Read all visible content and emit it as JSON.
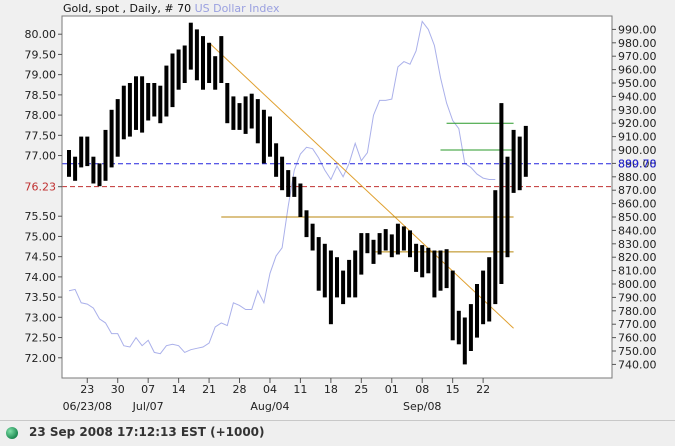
{
  "chart_data": {
    "type": "bar",
    "title_parts": {
      "symbol": "Gold, spot , Daily, # 70",
      "overlay": "US Dollar Index"
    },
    "left_axis": {
      "ylim": [
        71.5,
        80.45
      ],
      "ticks": [
        72.0,
        72.5,
        73.0,
        73.5,
        74.0,
        74.5,
        75.0,
        75.5,
        76.23,
        77.0,
        77.5,
        78.0,
        78.5,
        79.0,
        79.5,
        80.0
      ],
      "tick_labels": [
        "72.00",
        "72.50",
        "73.00",
        "73.50",
        "74.00",
        "74.50",
        "75.00",
        "75.50",
        "76.23",
        "77.00",
        "77.50",
        "78.00",
        "78.50",
        "79.00",
        "79.50",
        "80.00"
      ]
    },
    "right_axis": {
      "ylim": [
        729.86,
        1000.0
      ],
      "ticks": [
        740,
        750,
        760,
        770,
        780,
        790,
        800,
        810,
        820,
        830,
        840,
        850,
        860,
        870,
        880,
        890,
        900,
        910,
        920,
        930,
        940,
        950,
        960,
        970,
        980,
        990
      ],
      "tick_labels": [
        "740.00",
        "750.00",
        "760.00",
        "770.00",
        "780.00",
        "790.00",
        "800.00",
        "810.00",
        "820.00",
        "830.00",
        "840.00",
        "850.00",
        "860.00",
        "870.00",
        "880.00",
        "890.00",
        "900.00",
        "910.00",
        "920.00",
        "930.00",
        "940.00",
        "950.00",
        "960.00",
        "970.00",
        "980.00",
        "990.00"
      ],
      "current_value_label": "889.78"
    },
    "x_axis": {
      "day_labels": [
        {
          "i": 3,
          "t": "23"
        },
        {
          "i": 8,
          "t": "30"
        },
        {
          "i": 13,
          "t": "07"
        },
        {
          "i": 18,
          "t": "14"
        },
        {
          "i": 23,
          "t": "21"
        },
        {
          "i": 28,
          "t": "28"
        },
        {
          "i": 33,
          "t": "04"
        },
        {
          "i": 38,
          "t": "11"
        },
        {
          "i": 43,
          "t": "18"
        },
        {
          "i": 48,
          "t": "25"
        },
        {
          "i": 53,
          "t": "01"
        },
        {
          "i": 58,
          "t": "08"
        },
        {
          "i": 63,
          "t": "15"
        },
        {
          "i": 68,
          "t": "22"
        }
      ],
      "month_labels": [
        {
          "i": 3,
          "t": "06/23/08"
        },
        {
          "i": 13,
          "t": "Jul/07"
        },
        {
          "i": 33,
          "t": "Aug/04"
        },
        {
          "i": 58,
          "t": "Sep/08"
        }
      ]
    },
    "series": [
      {
        "name": "Gold, spot",
        "axis": "right",
        "style": "ohlc-bars",
        "color": "#000000",
        "values": [
          [
            880,
            900
          ],
          [
            877,
            895
          ],
          [
            887,
            910
          ],
          [
            888,
            910
          ],
          [
            875,
            895
          ],
          [
            873,
            890
          ],
          [
            877,
            915
          ],
          [
            887,
            930
          ],
          [
            895,
            938
          ],
          [
            908,
            948
          ],
          [
            910,
            950
          ],
          [
            915,
            955
          ],
          [
            913,
            955
          ],
          [
            922,
            950
          ],
          [
            925,
            950
          ],
          [
            920,
            948
          ],
          [
            925,
            963
          ],
          [
            932,
            972
          ],
          [
            945,
            975
          ],
          [
            950,
            978
          ],
          [
            960,
            995
          ],
          [
            952,
            990
          ],
          [
            945,
            985
          ],
          [
            950,
            980
          ],
          [
            945,
            970
          ],
          [
            950,
            985
          ],
          [
            920,
            950
          ],
          [
            915,
            940
          ],
          [
            915,
            935
          ],
          [
            912,
            940
          ],
          [
            916,
            942
          ],
          [
            905,
            938
          ],
          [
            890,
            930
          ],
          [
            895,
            925
          ],
          [
            880,
            905
          ],
          [
            870,
            895
          ],
          [
            865,
            885
          ],
          [
            865,
            880
          ],
          [
            850,
            875
          ],
          [
            835,
            855
          ],
          [
            825,
            845
          ],
          [
            795,
            835
          ],
          [
            790,
            830
          ],
          [
            770,
            825
          ],
          [
            790,
            820
          ],
          [
            785,
            810
          ],
          [
            790,
            818
          ],
          [
            790,
            825
          ],
          [
            807,
            838
          ],
          [
            823,
            838
          ],
          [
            815,
            833
          ],
          [
            822,
            838
          ],
          [
            825,
            841
          ],
          [
            820,
            837
          ],
          [
            822,
            845
          ],
          [
            825,
            843
          ],
          [
            820,
            840
          ],
          [
            809,
            830
          ],
          [
            805,
            829
          ],
          [
            808,
            827
          ],
          [
            790,
            825
          ],
          [
            795,
            825
          ],
          [
            797,
            826
          ],
          [
            758,
            810
          ],
          [
            755,
            780
          ],
          [
            740,
            775
          ],
          [
            750,
            785
          ],
          [
            760,
            800
          ],
          [
            770,
            810
          ],
          [
            772,
            820
          ],
          [
            785,
            870
          ],
          [
            800,
            935
          ],
          [
            820,
            895
          ],
          [
            868,
            915
          ],
          [
            870,
            910
          ],
          [
            880,
            918
          ]
        ]
      },
      {
        "name": "US Dollar Index",
        "axis": "right",
        "style": "line",
        "color": "#aab0ea",
        "values": [
          795,
          796,
          786,
          785,
          782,
          774,
          771,
          763,
          763,
          754,
          753,
          760,
          754,
          758,
          749,
          748,
          754,
          755,
          754,
          749,
          751,
          752,
          753,
          756,
          768,
          771,
          769,
          786,
          784,
          781,
          781,
          795,
          786,
          808,
          821,
          827,
          858,
          885,
          897,
          902,
          901,
          894,
          885,
          878,
          888,
          880,
          890,
          905,
          892,
          898,
          926,
          937,
          937,
          938,
          962,
          966,
          964,
          974,
          996,
          990,
          978,
          954,
          935,
          922,
          916,
          890,
          887,
          882,
          879,
          878,
          878
        ]
      }
    ],
    "reference_lines": [
      {
        "label": "76.23",
        "value": 76.23,
        "axis": "left",
        "color": "#c03030",
        "style": "dashed"
      },
      {
        "label": "889.78",
        "value": 889.78,
        "axis": "right",
        "color": "#2222dd",
        "style": "dashed"
      }
    ],
    "trend_lines": [
      {
        "kind": "diagonal",
        "color": "#e0a030",
        "from": {
          "i": 23,
          "v": 980
        },
        "to": {
          "i": 73,
          "v": 767
        }
      },
      {
        "kind": "horizontal",
        "color": "#b8860b",
        "value": 850,
        "from_i": 25,
        "to_i": 73
      },
      {
        "kind": "horizontal",
        "color": "#b8860b",
        "value": 824,
        "from_i": 50,
        "to_i": 73
      },
      {
        "kind": "horizontal",
        "color": "#2a9a2a",
        "value": 920,
        "from_i": 62,
        "to_i": 73
      },
      {
        "kind": "horizontal",
        "color": "#2a9a2a",
        "value": 900,
        "from_i": 61,
        "to_i": 73
      }
    ],
    "grid": false
  },
  "status": {
    "text": "23 Sep 2008 17:12:13  EST (+1000)"
  }
}
